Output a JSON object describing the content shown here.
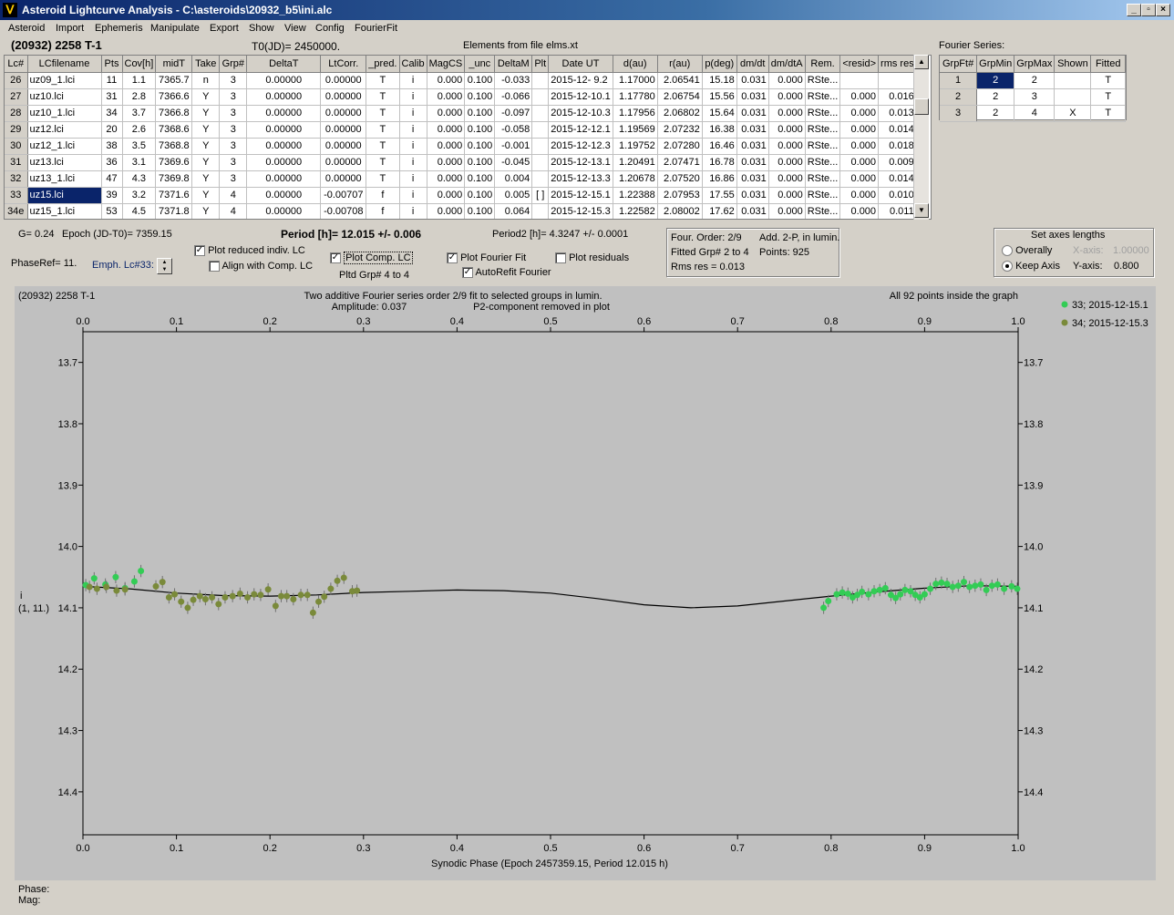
{
  "window": {
    "title": "Asteroid Lightcurve Analysis - C:\\asteroids\\20932_b5\\ini.alc",
    "buttons": [
      "_",
      "▫",
      "×"
    ]
  },
  "menu": [
    "Asteroid",
    "Import",
    "Ephemeris",
    "Manipulate",
    "Export",
    "Show",
    "View",
    "Config",
    "FourierFit"
  ],
  "header": {
    "asteroid": "(20932) 2258 T-1",
    "t0": "T0(JD)= 2450000.",
    "elements": "Elements from file elms.xt",
    "fourier_series_label": "Fourier Series:"
  },
  "grid": {
    "columns": [
      "Lc#",
      "LCfilename",
      "Pts",
      "Cov[h]",
      "midT",
      "Take",
      "Grp#",
      "DeltaT",
      "LtCorr.",
      "_pred.",
      "Calib",
      "MagCS",
      "_unc",
      "DeltaM",
      "Plt",
      "Date UT",
      "d(au)",
      "r(au)",
      "p(deg)",
      "dm/dt",
      "dm/dtA",
      "Rem.",
      "<resid>",
      "rms res"
    ],
    "rows": [
      [
        "26",
        "uz09_1.lci",
        "11",
        "1.1",
        "7365.7",
        "n",
        "3",
        "0.00000",
        "0.00000",
        "T",
        "i",
        "0.000",
        "0.100",
        "-0.033",
        "",
        "2015-12- 9.2",
        "1.17000",
        "2.06541",
        "15.18",
        "0.031",
        "0.000",
        "RSte...",
        "",
        ""
      ],
      [
        "27",
        "uz10.lci",
        "31",
        "2.8",
        "7366.6",
        "Y",
        "3",
        "0.00000",
        "0.00000",
        "T",
        "i",
        "0.000",
        "0.100",
        "-0.066",
        "",
        "2015-12-10.1",
        "1.17780",
        "2.06754",
        "15.56",
        "0.031",
        "0.000",
        "RSte...",
        "0.000",
        "0.016"
      ],
      [
        "28",
        "uz10_1.lci",
        "34",
        "3.7",
        "7366.8",
        "Y",
        "3",
        "0.00000",
        "0.00000",
        "T",
        "i",
        "0.000",
        "0.100",
        "-0.097",
        "",
        "2015-12-10.3",
        "1.17956",
        "2.06802",
        "15.64",
        "0.031",
        "0.000",
        "RSte...",
        "0.000",
        "0.013"
      ],
      [
        "29",
        "uz12.lci",
        "20",
        "2.6",
        "7368.6",
        "Y",
        "3",
        "0.00000",
        "0.00000",
        "T",
        "i",
        "0.000",
        "0.100",
        "-0.058",
        "",
        "2015-12-12.1",
        "1.19569",
        "2.07232",
        "16.38",
        "0.031",
        "0.000",
        "RSte...",
        "0.000",
        "0.014"
      ],
      [
        "30",
        "uz12_1.lci",
        "38",
        "3.5",
        "7368.8",
        "Y",
        "3",
        "0.00000",
        "0.00000",
        "T",
        "i",
        "0.000",
        "0.100",
        "-0.001",
        "",
        "2015-12-12.3",
        "1.19752",
        "2.07280",
        "16.46",
        "0.031",
        "0.000",
        "RSte...",
        "0.000",
        "0.018"
      ],
      [
        "31",
        "uz13.lci",
        "36",
        "3.1",
        "7369.6",
        "Y",
        "3",
        "0.00000",
        "0.00000",
        "T",
        "i",
        "0.000",
        "0.100",
        "-0.045",
        "",
        "2015-12-13.1",
        "1.20491",
        "2.07471",
        "16.78",
        "0.031",
        "0.000",
        "RSte...",
        "0.000",
        "0.009"
      ],
      [
        "32",
        "uz13_1.lci",
        "47",
        "4.3",
        "7369.8",
        "Y",
        "3",
        "0.00000",
        "0.00000",
        "T",
        "i",
        "0.000",
        "0.100",
        "0.004",
        "",
        "2015-12-13.3",
        "1.20678",
        "2.07520",
        "16.86",
        "0.031",
        "0.000",
        "RSte...",
        "0.000",
        "0.014"
      ],
      [
        "33",
        "uz15.lci",
        "39",
        "3.2",
        "7371.6",
        "Y",
        "4",
        "0.00000",
        "-0.00707",
        "f",
        "i",
        "0.000",
        "0.100",
        "0.005",
        "[ ]",
        "2015-12-15.1",
        "1.22388",
        "2.07953",
        "17.55",
        "0.031",
        "0.000",
        "RSte...",
        "0.000",
        "0.010"
      ],
      [
        "34e",
        "uz15_1.lci",
        "53",
        "4.5",
        "7371.8",
        "Y",
        "4",
        "0.00000",
        "-0.00708",
        "f",
        "i",
        "0.000",
        "0.100",
        "0.064",
        "",
        "2015-12-15.3",
        "1.22582",
        "2.08002",
        "17.62",
        "0.031",
        "0.000",
        "RSte...",
        "0.000",
        "0.011"
      ]
    ],
    "selected_row": 7
  },
  "fourier": {
    "columns": [
      "GrpFt#",
      "GrpMin",
      "GrpMax",
      "Shown",
      "Fitted"
    ],
    "rows": [
      [
        "1",
        "2",
        "2",
        "",
        "T"
      ],
      [
        "2",
        "2",
        "3",
        "",
        "T"
      ],
      [
        "3",
        "2",
        "4",
        "X",
        "T"
      ]
    ]
  },
  "controls": {
    "g_label": "G= 0.24",
    "epoch_label": "Epoch (JD-T0)= 7359.15",
    "period_label": "Period [h]= 12.015 +/- 0.006",
    "period2_label": "Period2 [h]= 4.3247 +/- 0.0001",
    "phaseref_label": "PhaseRef= 11.",
    "emph_label": "Emph. Lc#33:",
    "plot_reduced": "Plot reduced indiv. LC",
    "align_comp": "Align with Comp. LC",
    "plot_comp": "Plot Comp. LC",
    "pltd_grp": "Pltd Grp#  4  to  4",
    "plot_fourier": "Plot Fourier Fit",
    "autorefit": "AutoRefit Fourier",
    "plot_residuals": "Plot residuals",
    "check_marks": "✓",
    "info_box": {
      "order": "Four. Order:  2/9",
      "add": "Add. 2-P, in lumin.",
      "fitted": "Fitted Grp# 2 to 4",
      "points": "Points: 925",
      "rms": "Rms res    = 0.013"
    },
    "axes_box": {
      "title": "Set axes lengths",
      "overally": "Overally",
      "keep_axis": "Keep Axis",
      "x_axis_label": "X-axis:",
      "x_axis_value": "1.00000",
      "y_axis_label": "Y-axis:",
      "y_axis_value": "0.800"
    }
  },
  "chart_data": {
    "type": "scatter",
    "header_left": "(20932) 2258 T-1",
    "title": "Two additive Fourier series order 2/9 fit to selected groups in lumin.",
    "amplitude": "Amplitude: 0.037",
    "subtitle": "P2-component removed in plot",
    "header_right": "All 92 points inside the graph",
    "xlabel": "Synodic Phase (Epoch 2457359.15, Period 12.015 h)",
    "ylabel": "i",
    "ylabel2": "(1, 11.)",
    "xlim": [
      0,
      1
    ],
    "ylim": [
      13.65,
      14.47
    ],
    "y_inverted": true,
    "xticks": [
      "0.0",
      "0.1",
      "0.2",
      "0.3",
      "0.4",
      "0.5",
      "0.6",
      "0.7",
      "0.8",
      "0.9",
      "1.0"
    ],
    "yticks": [
      "13.7",
      "13.8",
      "13.9",
      "14.0",
      "14.1",
      "14.2",
      "14.3",
      "14.4"
    ],
    "legend_position": "right",
    "error_bar": 0.01,
    "series": [
      {
        "name": "33; 2015-12-15.1",
        "color": "#33cc55",
        "points": [
          [
            0.003,
            14.063
          ],
          [
            0.012,
            14.052
          ],
          [
            0.024,
            14.062
          ],
          [
            0.035,
            14.05
          ],
          [
            0.045,
            14.068
          ],
          [
            0.055,
            14.057
          ],
          [
            0.062,
            14.04
          ],
          [
            0.792,
            14.1
          ],
          [
            0.797,
            14.089
          ],
          [
            0.806,
            14.078
          ],
          [
            0.812,
            14.075
          ],
          [
            0.818,
            14.077
          ],
          [
            0.823,
            14.083
          ],
          [
            0.828,
            14.079
          ],
          [
            0.833,
            14.074
          ],
          [
            0.84,
            14.078
          ],
          [
            0.846,
            14.073
          ],
          [
            0.852,
            14.071
          ],
          [
            0.858,
            14.068
          ],
          [
            0.864,
            14.079
          ],
          [
            0.869,
            14.084
          ],
          [
            0.874,
            14.078
          ],
          [
            0.879,
            14.071
          ],
          [
            0.885,
            14.073
          ],
          [
            0.89,
            14.079
          ],
          [
            0.895,
            14.083
          ],
          [
            0.9,
            14.078
          ],
          [
            0.906,
            14.069
          ],
          [
            0.912,
            14.061
          ],
          [
            0.918,
            14.059
          ],
          [
            0.924,
            14.061
          ],
          [
            0.93,
            14.066
          ],
          [
            0.936,
            14.064
          ],
          [
            0.942,
            14.058
          ],
          [
            0.948,
            14.066
          ],
          [
            0.954,
            14.064
          ],
          [
            0.96,
            14.062
          ],
          [
            0.966,
            14.071
          ],
          [
            0.972,
            14.064
          ],
          [
            0.978,
            14.062
          ],
          [
            0.985,
            14.069
          ],
          [
            0.993,
            14.065
          ],
          [
            0.999,
            14.069
          ]
        ]
      },
      {
        "name": "34; 2015-12-15.3",
        "color": "#7a8a3a",
        "points": [
          [
            0.007,
            14.066
          ],
          [
            0.015,
            14.069
          ],
          [
            0.025,
            14.066
          ],
          [
            0.036,
            14.072
          ],
          [
            0.045,
            14.07
          ],
          [
            0.078,
            14.065
          ],
          [
            0.085,
            14.058
          ],
          [
            0.092,
            14.083
          ],
          [
            0.098,
            14.078
          ],
          [
            0.105,
            14.09
          ],
          [
            0.112,
            14.1
          ],
          [
            0.118,
            14.087
          ],
          [
            0.125,
            14.081
          ],
          [
            0.131,
            14.086
          ],
          [
            0.138,
            14.083
          ],
          [
            0.145,
            14.094
          ],
          [
            0.152,
            14.083
          ],
          [
            0.16,
            14.081
          ],
          [
            0.168,
            14.077
          ],
          [
            0.176,
            14.083
          ],
          [
            0.183,
            14.078
          ],
          [
            0.19,
            14.079
          ],
          [
            0.198,
            14.07
          ],
          [
            0.206,
            14.097
          ],
          [
            0.212,
            14.081
          ],
          [
            0.218,
            14.081
          ],
          [
            0.225,
            14.086
          ],
          [
            0.233,
            14.079
          ],
          [
            0.24,
            14.079
          ],
          [
            0.246,
            14.108
          ],
          [
            0.252,
            14.09
          ],
          [
            0.258,
            14.082
          ],
          [
            0.265,
            14.069
          ],
          [
            0.272,
            14.056
          ],
          [
            0.279,
            14.051
          ],
          [
            0.288,
            14.073
          ],
          [
            0.293,
            14.072
          ]
        ]
      }
    ],
    "fit_curve": [
      [
        0.0,
        14.065
      ],
      [
        0.05,
        14.069
      ],
      [
        0.1,
        14.076
      ],
      [
        0.15,
        14.08
      ],
      [
        0.2,
        14.081
      ],
      [
        0.25,
        14.079
      ],
      [
        0.3,
        14.075
      ],
      [
        0.35,
        14.073
      ],
      [
        0.4,
        14.071
      ],
      [
        0.45,
        14.072
      ],
      [
        0.5,
        14.076
      ],
      [
        0.55,
        14.085
      ],
      [
        0.6,
        14.095
      ],
      [
        0.65,
        14.1
      ],
      [
        0.7,
        14.097
      ],
      [
        0.75,
        14.089
      ],
      [
        0.8,
        14.081
      ],
      [
        0.85,
        14.074
      ],
      [
        0.9,
        14.068
      ],
      [
        0.95,
        14.064
      ],
      [
        1.0,
        14.065
      ]
    ]
  },
  "status": {
    "phase": "Phase:",
    "mag": "Mag:"
  }
}
